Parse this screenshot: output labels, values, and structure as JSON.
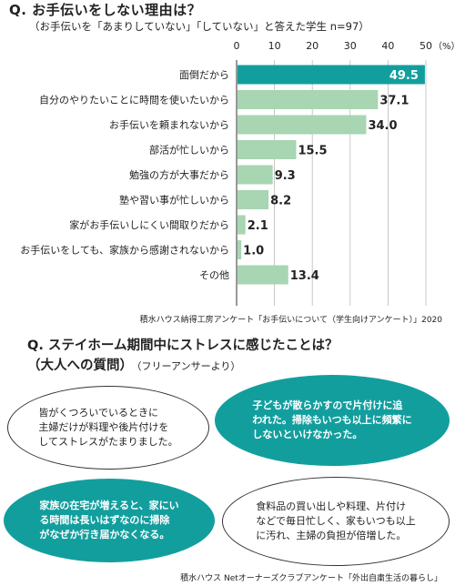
{
  "question1": {
    "title": "Q. お手伝いをしない理由は？",
    "subtitle": "（お手伝いを「あまりしていない」「していない」と答えた学生 n=97）",
    "source": "積水ハウス納得工房アンケート「お手伝いについて（学生向けアンケート）」2020"
  },
  "chart_data": {
    "type": "bar",
    "orientation": "horizontal",
    "categories": [
      "面倒だから",
      "自分のやりたいことに時間を使いたいから",
      "お手伝いを頼まれないから",
      "部活が忙しいから",
      "勉強の方が大事だから",
      "塾や習い事が忙しいから",
      "家がお手伝いしにくい間取りだから",
      "お手伝いをしても、家族から感謝されないから",
      "その他"
    ],
    "values": [
      49.5,
      37.1,
      34.0,
      15.5,
      9.3,
      8.2,
      2.1,
      1.0,
      13.4
    ],
    "value_labels": [
      "49.5",
      "37.1",
      "34.0",
      "15.5",
      "9.3",
      "8.2",
      "2.1",
      "1.0",
      "13.4"
    ],
    "xlim": [
      0,
      50
    ],
    "ticks": [
      "0",
      "10",
      "20",
      "30",
      "40",
      "50"
    ],
    "unit_label": "（%）",
    "grid": true,
    "colors": {
      "highlight": "#139e9e",
      "bar": "#a8d5b2"
    }
  },
  "question2": {
    "title": "Q. ステイホーム期間中にストレスに感じたことは？",
    "title2": "（大人への質問）",
    "note": "（フリーアンサーより）",
    "bubbles": [
      "皆がくつろいでいるときに\n主婦だけが料理や後片付けを\nしてストレスがたまりました。",
      "子どもが散らかすので片付けに追\nわれた。掃除もいつも以上に頻繁に\nしないといけなかった。",
      "家族の在宅が増えると、家にい\nる時間は長いはずなのに掃除\nがなぜか行き届かなくなる。",
      "食料品の買い出しや料理、片付け\nなどで毎日忙しく、家もいつも以上\nに汚れ、主婦の負担が倍増した。"
    ],
    "source": "積水ハウス Netオーナーズクラブアンケート「外出自粛生活の暮らし」"
  }
}
